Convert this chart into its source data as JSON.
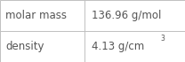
{
  "rows": [
    {
      "label": "molar mass",
      "value": "136.96 g/mol",
      "superscript": null
    },
    {
      "label": "density",
      "value": "4.13 g/cm",
      "superscript": "3"
    }
  ],
  "col_split": 0.455,
  "background_color": "#ffffff",
  "border_color": "#c0c0c0",
  "text_color": "#555555",
  "font_size": 8.5,
  "super_font_size": 5.5
}
